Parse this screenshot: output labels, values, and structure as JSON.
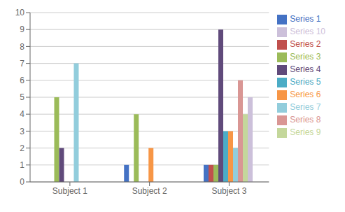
{
  "chart_data": {
    "type": "bar",
    "categories": [
      "Subject 1",
      "Subject 2",
      "Subject 3"
    ],
    "series": [
      {
        "name": "Series 1",
        "color": "#4472C4",
        "values": [
          0,
          1,
          1
        ]
      },
      {
        "name": "Series 2",
        "color": "#C0504D",
        "values": [
          0,
          0,
          1
        ]
      },
      {
        "name": "Series 3",
        "color": "#9BBB59",
        "values": [
          5,
          4,
          1
        ]
      },
      {
        "name": "Series 4",
        "color": "#604A7B",
        "values": [
          2,
          0,
          9
        ]
      },
      {
        "name": "Series 5",
        "color": "#4BACC6",
        "values": [
          0,
          0,
          3
        ]
      },
      {
        "name": "Series 6",
        "color": "#F79646",
        "values": [
          0,
          2,
          3
        ]
      },
      {
        "name": "Series 7",
        "color": "#92CDDC",
        "values": [
          7,
          0,
          2
        ]
      },
      {
        "name": "Series 8",
        "color": "#D99694",
        "values": [
          0,
          0,
          6
        ]
      },
      {
        "name": "Series 9",
        "color": "#C4D79B",
        "values": [
          0,
          0,
          4
        ]
      },
      {
        "name": "Series 10",
        "color": "#CCC0DA",
        "values": [
          0,
          0,
          5
        ]
      }
    ],
    "ylim": [
      0,
      10
    ],
    "yticks": [
      0,
      1,
      2,
      3,
      4,
      5,
      6,
      7,
      8,
      9,
      10
    ],
    "grid": true,
    "legend": "right"
  }
}
